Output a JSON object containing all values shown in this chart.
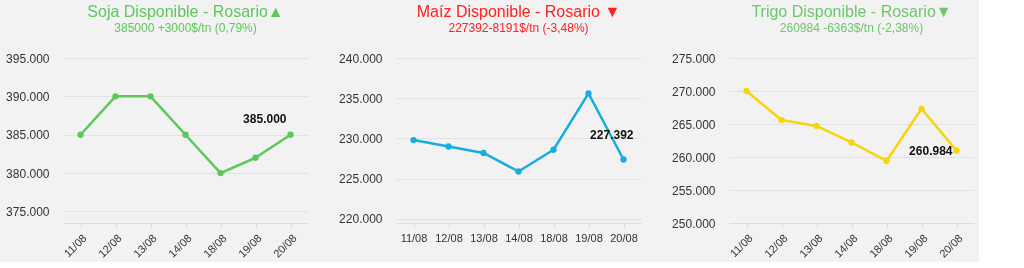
{
  "chart_data": [
    {
      "type": "line",
      "title": "Soja Disponible - Rosario▲",
      "subtitle": "385000 +3000$/tn (0,79%)",
      "categories": [
        "11/08",
        "12/08",
        "13/08",
        "14/08",
        "18/08",
        "19/08",
        "20/08"
      ],
      "series": [
        {
          "color": "#5cc85a",
          "values": [
            385000,
            390000,
            390000,
            385000,
            380000,
            382000,
            385000
          ],
          "value_labels": [
            null,
            null,
            null,
            null,
            null,
            null,
            "385.000"
          ]
        }
      ],
      "ylim": [
        373500,
        395000
      ],
      "yticks": [
        {
          "value": 375000,
          "label": "375.000"
        },
        {
          "value": 380000,
          "label": "380.000"
        },
        {
          "value": 385000,
          "label": "385.000"
        },
        {
          "value": 390000,
          "label": "390.000"
        },
        {
          "value": 395000,
          "label": "395.000"
        }
      ],
      "grid": "y",
      "marker": "circle",
      "line_style": "solid"
    },
    {
      "type": "line",
      "title": "Maíz Disponible - Rosario ▼",
      "subtitle": "227392-8191$/tn (-3,48%)",
      "categories": [
        "11/08",
        "12/08",
        "13/08",
        "14/08",
        "18/08",
        "19/08",
        "20/08"
      ],
      "series": [
        {
          "color": "#17ade0",
          "values": [
            229800,
            229000,
            228200,
            225900,
            228600,
            235600,
            227392
          ],
          "value_labels": [
            null,
            null,
            null,
            null,
            null,
            null,
            "227.392"
          ]
        }
      ],
      "ylim": [
        219500,
        240000
      ],
      "yticks": [
        {
          "value": 220000,
          "label": "220.000"
        },
        {
          "value": 225000,
          "label": "225.000"
        },
        {
          "value": 230000,
          "label": "230.000"
        },
        {
          "value": 235000,
          "label": "235.000"
        },
        {
          "value": 240000,
          "label": "240.000"
        }
      ],
      "grid": "y",
      "marker": "circle",
      "line_style": "solid"
    },
    {
      "type": "line",
      "title": "Trigo Disponible - Rosario▼",
      "subtitle": "260984 -6363$/tn (-2,38%)",
      "categories": [
        "11/08",
        "12/08",
        "13/08",
        "14/08",
        "18/08",
        "19/08",
        "20/08"
      ],
      "series": [
        {
          "color": "#f7d40c",
          "values": [
            270000,
            265600,
            264700,
            262200,
            259400,
            267300,
            260984
          ],
          "value_labels": [
            null,
            null,
            null,
            null,
            null,
            null,
            "260.984"
          ]
        }
      ],
      "ylim": [
        250000,
        275000
      ],
      "yticks": [
        {
          "value": 250000,
          "label": "250.000"
        },
        {
          "value": 255000,
          "label": "255.000"
        },
        {
          "value": 260000,
          "label": "260.000"
        },
        {
          "value": 265000,
          "label": "265.000"
        },
        {
          "value": 270000,
          "label": "270.000"
        },
        {
          "value": 275000,
          "label": "275.000"
        }
      ],
      "grid": "y",
      "marker": "circle",
      "line_style": "solid"
    }
  ]
}
